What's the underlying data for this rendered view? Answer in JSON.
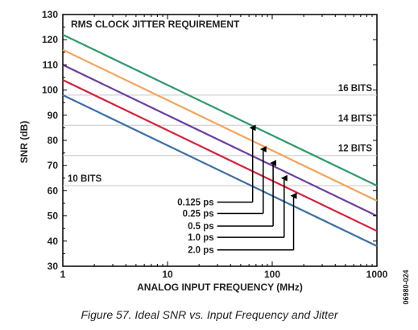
{
  "chart_data": {
    "type": "line",
    "title": "RMS CLOCK JITTER REQUIREMENT",
    "xlabel": "ANALOG INPUT FREQUENCY (MHz)",
    "ylabel": "SNR (dB)",
    "xscale": "log",
    "xlim": [
      1,
      1000
    ],
    "ylim": [
      30,
      130
    ],
    "x_ticks": [
      1,
      10,
      100,
      1000
    ],
    "y_ticks": [
      30,
      40,
      50,
      60,
      70,
      80,
      90,
      100,
      110,
      120,
      130
    ],
    "x_tick_labels": [
      "1",
      "10",
      "100",
      "1000"
    ],
    "y_tick_labels": [
      "30",
      "40",
      "50",
      "60",
      "70",
      "80",
      "90",
      "100",
      "110",
      "120",
      "130"
    ],
    "grid": false,
    "series": [
      {
        "name": "0.125 ps",
        "color": "#2e9a6a",
        "x": [
          1,
          1000
        ],
        "y": [
          122,
          62
        ]
      },
      {
        "name": "0.25 ps",
        "color": "#f7a35c",
        "x": [
          1,
          1000
        ],
        "y": [
          116,
          56
        ]
      },
      {
        "name": "0.5 ps",
        "color": "#6b3fa0",
        "x": [
          1,
          1000
        ],
        "y": [
          110,
          50
        ]
      },
      {
        "name": "1.0 ps",
        "color": "#d8203a",
        "x": [
          1,
          1000
        ],
        "y": [
          104,
          44
        ]
      },
      {
        "name": "2.0 ps",
        "color": "#3a6ea8",
        "x": [
          1,
          1000
        ],
        "y": [
          98,
          38
        ]
      }
    ],
    "reference_lines": [
      {
        "label": "16 BITS",
        "y": 98
      },
      {
        "label": "14 BITS",
        "y": 86
      },
      {
        "label": "12 BITS",
        "y": 74
      },
      {
        "label": "10 BITS",
        "y": 62
      }
    ],
    "annotations": [
      {
        "label": "0.125 ps",
        "arrow_x": 65,
        "arrow_top": 85,
        "label_y": 55.5
      },
      {
        "label": "0.25 ps",
        "arrow_x": 82,
        "arrow_top": 76.5,
        "label_y": 51
      },
      {
        "label": "0.5 ps",
        "arrow_x": 102,
        "arrow_top": 71,
        "label_y": 46
      },
      {
        "label": "1.0 ps",
        "arrow_x": 130,
        "arrow_top": 65,
        "label_y": 41.5
      },
      {
        "label": "2.0 ps",
        "arrow_x": 160,
        "arrow_top": 58,
        "label_y": 36.5
      }
    ]
  },
  "caption": "Figure 57. Ideal SNR vs. Input Frequency and Jitter",
  "figure_id": "06980-024"
}
